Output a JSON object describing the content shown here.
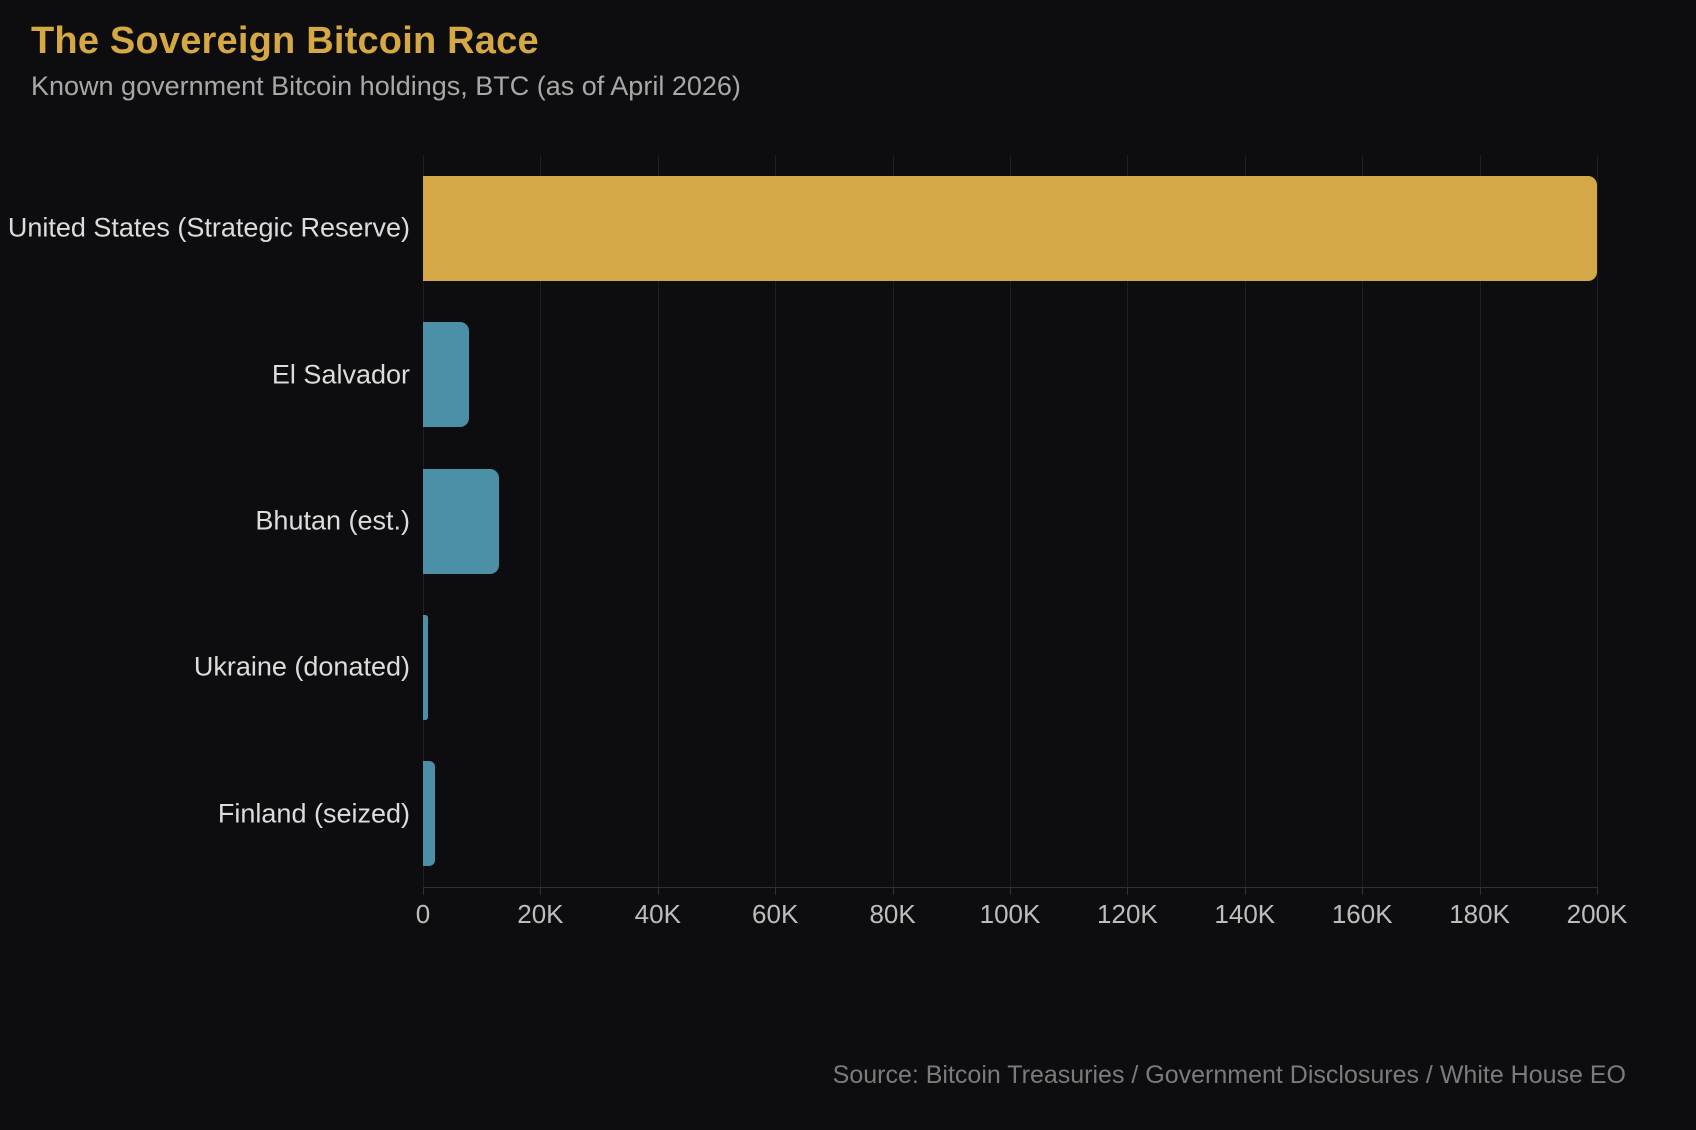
{
  "header": {
    "title": "The Sovereign Bitcoin Race",
    "subtitle": "Known government Bitcoin holdings, BTC (as of April 2026)"
  },
  "chart_data": {
    "type": "bar",
    "orientation": "horizontal",
    "title": "The Sovereign Bitcoin Race",
    "subtitle": "Known government Bitcoin holdings, BTC (as of April 2026)",
    "unit": "BTC",
    "categories": [
      "United States (Strategic Reserve)",
      "El Salvador",
      "Bhutan (est.)",
      "Ukraine (donated)",
      "Finland (seized)"
    ],
    "values": [
      200000,
      7800,
      13000,
      900,
      2000
    ],
    "xlim": [
      0,
      200000
    ],
    "x_ticks": [
      {
        "value": 0,
        "label": "0"
      },
      {
        "value": 20000,
        "label": "20K"
      },
      {
        "value": 40000,
        "label": "40K"
      },
      {
        "value": 60000,
        "label": "60K"
      },
      {
        "value": 80000,
        "label": "80K"
      },
      {
        "value": 100000,
        "label": "100K"
      },
      {
        "value": 120000,
        "label": "120K"
      },
      {
        "value": 140000,
        "label": "140K"
      },
      {
        "value": 160000,
        "label": "160K"
      },
      {
        "value": 180000,
        "label": "180K"
      },
      {
        "value": 200000,
        "label": "200K"
      }
    ],
    "grid": "vertical",
    "legend": "none",
    "highlight_index": 0,
    "bar_colors": {
      "highlight": "#d4a847",
      "default": "#4b90a6"
    }
  },
  "footer": {
    "source": "Source: Bitcoin Treasuries / Government Disclosures / White House EO"
  },
  "colors": {
    "background": "#0d0d0f",
    "title": "#d5a843",
    "subtitle": "#a8a8a8",
    "category_label": "#dcdcdc",
    "tick_label": "#bdbdbd",
    "source": "#7b7b7b",
    "gridline": "#1f1f23",
    "axis_line": "#313134"
  }
}
